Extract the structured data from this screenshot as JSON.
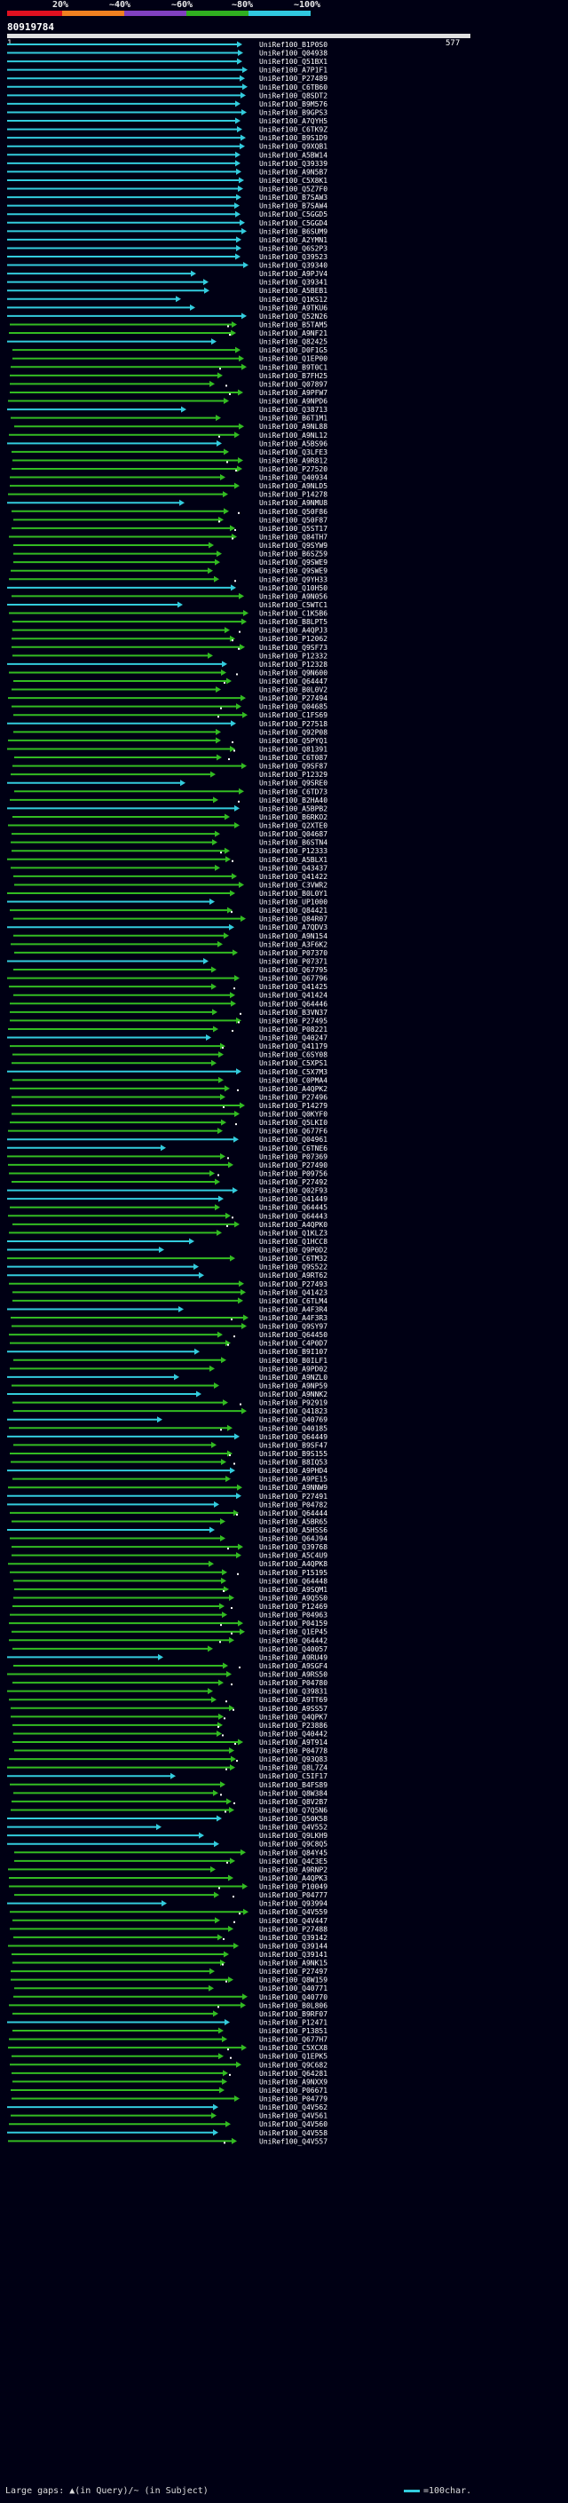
{
  "header": {
    "query_id": "80919784",
    "start": "1",
    "end": "577",
    "scale_labels": [
      "20%",
      "~40%",
      "~60%",
      "~80%",
      "~100%"
    ],
    "scale_colors": [
      "#e01020",
      "#f08020",
      "#8040c0",
      "#30b020",
      "#30c8e0"
    ]
  },
  "colors": {
    "background": "#000014",
    "cyan_hit": "#33ccdd",
    "green_hit": "#33bb22",
    "gap_mark": "#ffffff",
    "label": "#ffffff"
  },
  "legend": {
    "left": "Large gaps: ▲(in Query)/~ (in Subject)",
    "right": "=100char."
  },
  "hits": [
    "UniRef100_B1P0S0",
    "UniRef100_Q04938",
    "UniRef100_Q51BX1",
    "UniRef100_A7P1F1",
    "UniRef100_P27489",
    "UniRef100_C6TB60",
    "UniRef100_Q8SDT2",
    "UniRef100_B9M576",
    "UniRef100_B9GPS3",
    "UniRef100_A7QYH5",
    "UniRef100_C6TK9Z",
    "UniRef100_B9S1D9",
    "UniRef100_Q9XQB1",
    "UniRef100_A5BW14",
    "UniRef100_Q39339",
    "UniRef100_A9N5B7",
    "UniRef100_C5X8K1",
    "UniRef100_Q5Z7F0",
    "UniRef100_B7SAW3",
    "UniRef100_B7SAW4",
    "UniRef100_C5GGD5",
    "UniRef100_C5GGD4",
    "UniRef100_B6SUM9",
    "UniRef100_A2YMN1",
    "UniRef100_Q6S2P3",
    "UniRef100_Q39523",
    "UniRef100_Q39340",
    "UniRef100_A9PJV4",
    "UniRef100_Q39341",
    "UniRef100_A5BEB1",
    "UniRef100_Q1KS12",
    "UniRef100_A9TKU6",
    "UniRef100_Q52N26",
    "UniRef100_B5TAM5",
    "UniRef100_A9NF21",
    "UniRef100_Q82425",
    "UniRef100_D0F1G5",
    "UniRef100_Q1EP00",
    "UniRef100_B9T0C1",
    "UniRef100_B7FH25",
    "UniRef100_Q07897",
    "UniRef100_A9PFW7",
    "UniRef100_A9NPD6",
    "UniRef100_Q38713",
    "UniRef100_B6T1M1",
    "UniRef100_A9NL88",
    "UniRef100_A9NL12",
    "UniRef100_A5BS96",
    "UniRef100_Q3LFE3",
    "UniRef100_A9R812",
    "UniRef100_P27520",
    "UniRef100_Q40934",
    "UniRef100_A9NLD5",
    "UniRef100_P14278",
    "UniRef100_A9NMU8",
    "UniRef100_Q50F86",
    "UniRef100_Q50F87",
    "UniRef100_Q5ST17",
    "UniRef100_Q84TH7",
    "UniRef100_Q9SYW9",
    "UniRef100_B6SZ59",
    "UniRef100_Q9SWE9",
    "UniRef100_Q9SWE9",
    "UniRef100_Q9YH33",
    "UniRef100_Q10H50",
    "UniRef100_A9N056",
    "UniRef100_C5WTC1",
    "UniRef100_C1K5B6",
    "UniRef100_B8LPT5",
    "UniRef100_A4QPJ3",
    "UniRef100_P12062",
    "UniRef100_Q9SF73",
    "UniRef100_P12332",
    "UniRef100_P12328",
    "UniRef100_Q9N600",
    "UniRef100_Q64447",
    "UniRef100_B0L0V2",
    "UniRef100_P27494",
    "UniRef100_Q04685",
    "UniRef100_C1FS69",
    "UniRef100_P27518",
    "UniRef100_Q92P08",
    "UniRef100_Q5PYQ1",
    "UniRef100_Q81391",
    "UniRef100_C6T087",
    "UniRef100_Q9SF87",
    "UniRef100_P12329",
    "UniRef100_Q9SRE0",
    "UniRef100_C6TD73",
    "UniRef100_B2HA40",
    "UniRef100_A5BPB2",
    "UniRef100_B6RKO2",
    "UniRef100_Q2XTE0",
    "UniRef100_Q04687",
    "UniRef100_B6STN4",
    "UniRef100_P12333",
    "UniRef100_A5BLX1",
    "UniRef100_Q43437",
    "UniRef100_Q41422",
    "UniRef100_C3VWR2",
    "UniRef100_B0L0Y1",
    "UniRef100_UP1000",
    "UniRef100_Q84421",
    "UniRef100_Q84R07",
    "UniRef100_A7QDV3",
    "UniRef100_A9N154",
    "UniRef100_A3F6K2",
    "UniRef100_P07370",
    "UniRef100_P07371",
    "UniRef100_Q67795",
    "UniRef100_Q67796",
    "UniRef100_Q41425",
    "UniRef100_Q41424",
    "UniRef100_Q64446",
    "UniRef100_B3VN37",
    "UniRef100_P27495",
    "UniRef100_P08221",
    "UniRef100_Q40247",
    "UniRef100_Q41179",
    "UniRef100_C6SY08",
    "UniRef100_C5XPS1",
    "UniRef100_C5X7M3",
    "UniRef100_C0PMA4",
    "UniRef100_A4QPK2",
    "UniRef100_P27496",
    "UniRef100_P14279",
    "UniRef100_Q0KYF0",
    "UniRef100_Q5LKI0",
    "UniRef100_Q677F6",
    "UniRef100_Q04961",
    "UniRef100_C6TNE6",
    "UniRef100_P07369",
    "UniRef100_P27490",
    "UniRef100_P09756",
    "UniRef100_P27492",
    "UniRef100_Q02F93",
    "UniRef100_Q41449",
    "UniRef100_Q64445",
    "UniRef100_Q64443",
    "UniRef100_A4QPK0",
    "UniRef100_Q1KLZ3",
    "UniRef100_Q1HCC8",
    "UniRef100_Q9P0D2",
    "UniRef100_C6TM32",
    "UniRef100_Q9S522",
    "UniRef100_A9RT62",
    "UniRef100_P27493",
    "UniRef100_Q41423",
    "UniRef100_C6TLM4",
    "UniRef100_A4F3R4",
    "UniRef100_A4F3R3",
    "UniRef100_Q9SY97",
    "UniRef100_Q64450",
    "UniRef100_C4P0D7",
    "UniRef100_B9I107",
    "UniRef100_B0ILF1",
    "UniRef100_A9PD02",
    "UniRef100_A9NZL0",
    "UniRef100_A9NP59",
    "UniRef100_A9NNK2",
    "UniRef100_P92919",
    "UniRef100_Q41823",
    "UniRef100_Q40769",
    "UniRef100_Q40185",
    "UniRef100_Q64449",
    "UniRef100_B9SF47",
    "UniRef100_B9S155",
    "UniRef100_B8IQ53",
    "UniRef100_A9PHD4",
    "UniRef100_A9PE15",
    "UniRef100_A9NNW9",
    "UniRef100_P27491",
    "UniRef100_P04782",
    "UniRef100_Q64444",
    "UniRef100_A5BR65",
    "UniRef100_A5HSS6",
    "UniRef100_Q64J94",
    "UniRef100_Q39768",
    "UniRef100_A5C4U9",
    "UniRef100_A4QPK8",
    "UniRef100_P15195",
    "UniRef100_Q64448",
    "UniRef100_A9SQM1",
    "UniRef100_A9Q5S0",
    "UniRef100_P12469",
    "UniRef100_P04963",
    "UniRef100_P04159",
    "UniRef100_Q1EP45",
    "UniRef100_Q64442",
    "UniRef100_Q40057",
    "UniRef100_A9RU49",
    "UniRef100_A9SGF4",
    "UniRef100_A9RS50",
    "UniRef100_P04780",
    "UniRef100_Q39831",
    "UniRef100_A9TT69",
    "UniRef100_A9SS57",
    "UniRef100_Q4QPK7",
    "UniRef100_P23886",
    "UniRef100_Q40442",
    "UniRef100_A9T914",
    "UniRef100_P04778",
    "UniRef100_Q93Q83",
    "UniRef100_Q8L7Z4",
    "UniRef100_C5IF17",
    "UniRef100_B4FS89",
    "UniRef100_Q8W384",
    "UniRef100_Q8V2B7",
    "UniRef100_Q7Q5N6",
    "UniRef100_Q50K58",
    "UniRef100_Q4V552",
    "UniRef100_Q9LKH9",
    "UniRef100_Q9C8Q5",
    "UniRef100_Q84Y45",
    "UniRef100_Q4C3E5",
    "UniRef100_A9RNP2",
    "UniRef100_A4QPK3",
    "UniRef100_P10049",
    "UniRef100_P04777",
    "UniRef100_Q93994",
    "UniRef100_Q4V559",
    "UniRef100_Q4V447",
    "UniRef100_P27488",
    "UniRef100_Q39142",
    "UniRef100_Q39144",
    "UniRef100_Q39141",
    "UniRef100_A9NK15",
    "UniRef100_P27497",
    "UniRef100_Q8W159",
    "UniRef100_Q40771",
    "UniRef100_Q40770",
    "UniRef100_B0L806",
    "UniRef100_B9RF07",
    "UniRef100_P12471",
    "UniRef100_P13851",
    "UniRef100_Q677H7",
    "UniRef100_C5XCX8",
    "UniRef100_Q1EPK5",
    "UniRef100_Q9C682",
    "UniRef100_Q64281",
    "UniRef100_A9NXX9",
    "UniRef100_P06671",
    "UniRef100_P04779",
    "UniRef100_Q4V562",
    "UniRef100_Q4V561",
    "UniRef100_Q4V560",
    "UniRef100_Q4V558",
    "UniRef100_Q4V557"
  ]
}
